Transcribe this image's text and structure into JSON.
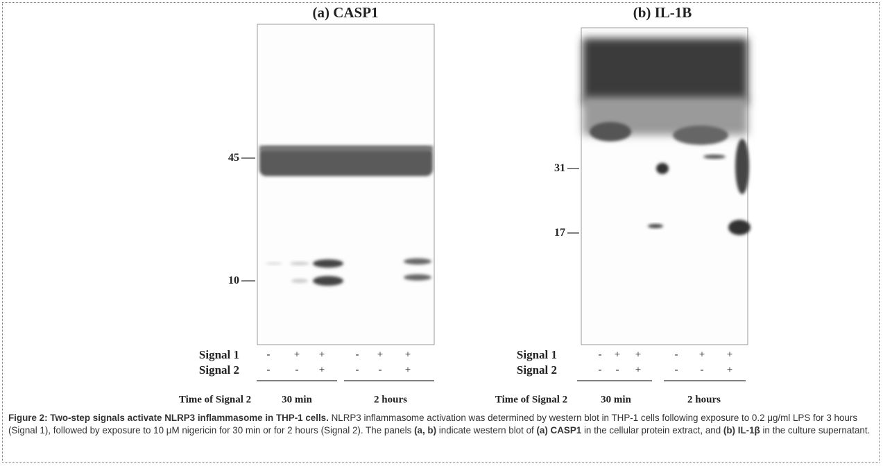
{
  "panels": [
    {
      "title": "(a) CASP1",
      "markers": [
        "45",
        "10"
      ],
      "signal_rows": [
        {
          "label": "Signal 1",
          "signs": [
            "-",
            "+",
            "+",
            "-",
            "+",
            "+"
          ]
        },
        {
          "label": "Signal 2",
          "signs": [
            "-",
            "-",
            "+",
            "-",
            "-",
            "+"
          ]
        }
      ],
      "time_label": "Time of Signal 2",
      "times": [
        "30 min",
        "2 hours"
      ]
    },
    {
      "title": "(b) IL-1B",
      "markers": [
        "31",
        "17"
      ],
      "signal_rows": [
        {
          "label": "Signal 1",
          "signs": [
            "-",
            "+",
            "+",
            "-",
            "+",
            "+"
          ]
        },
        {
          "label": "Signal 2",
          "signs": [
            "-",
            "-",
            "+",
            "-",
            "-",
            "+"
          ]
        }
      ],
      "time_label": "Time of Signal 2",
      "times": [
        "30 min",
        "2 hours"
      ]
    }
  ],
  "caption": {
    "title": "Figure 2: Two-step signals activate NLRP3 inflammasome in THP-1 cells.",
    "parts": [
      " NLRP3 inflammasome activation was determined by western blot in THP-1 cells following exposure to 0.2 μg/ml LPS for 3 hours (Signal 1), followed by exposure to 10 μM nigericin for 30 min or for 2 hours (Signal 2). The panels ",
      "(a, b)",
      " indicate western blot of ",
      "(a) CASP1",
      " in the cellular protein extract, and ",
      "(b) IL-1β",
      " in the culture supernatant."
    ]
  }
}
